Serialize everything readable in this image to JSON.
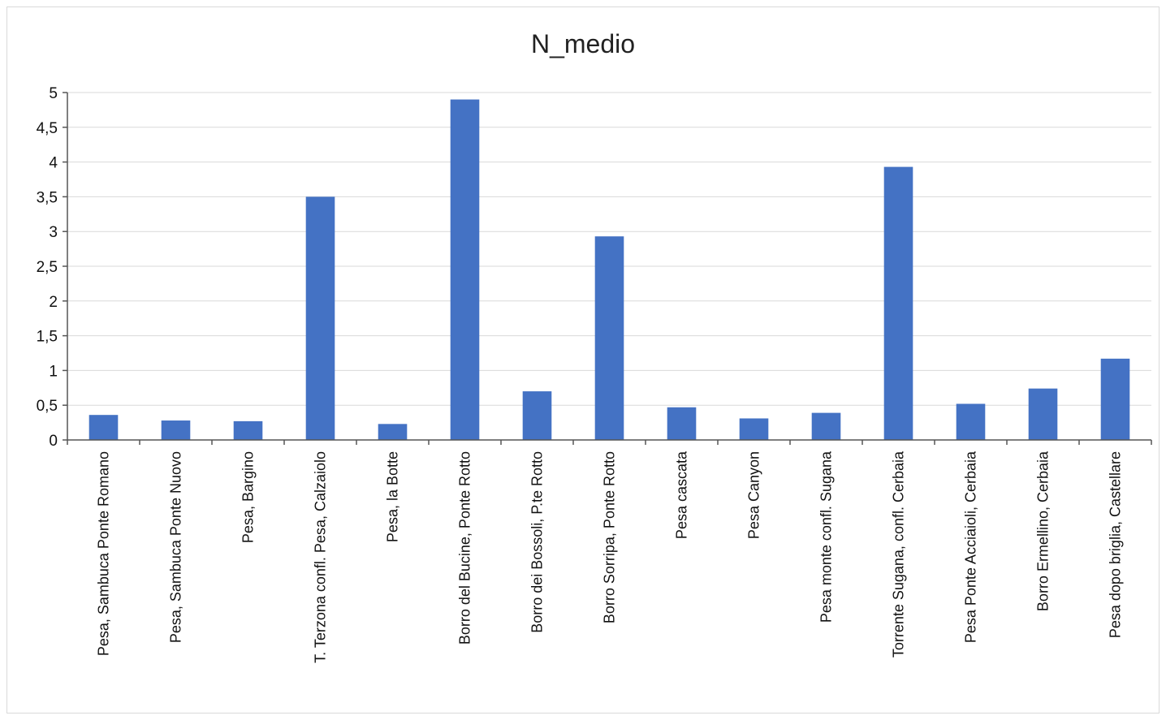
{
  "chart_data": {
    "type": "bar",
    "title": "N_medio",
    "xlabel": "",
    "ylabel": "",
    "ylim": [
      0,
      5
    ],
    "yticks": [
      "0",
      "0,5",
      "1",
      "1,5",
      "2",
      "2,5",
      "3",
      "3,5",
      "4",
      "4,5",
      "5"
    ],
    "ytick_values": [
      0,
      0.5,
      1,
      1.5,
      2,
      2.5,
      3,
      3.5,
      4,
      4.5,
      5
    ],
    "grid": true,
    "legend": "none",
    "bar_color": "#4472c4",
    "categories": [
      "Pesa, Sambuca Ponte Romano",
      "Pesa, Sambuca Ponte Nuovo",
      "Pesa, Bargino",
      "T. Terzona confl. Pesa, Calzaiolo",
      "Pesa, la Botte",
      "Borro del Bucine, Ponte Rotto",
      "Borro dei Bossoli, P.te Rotto",
      "Borro Sorripa, Ponte Rotto",
      "Pesa cascata",
      "Pesa Canyon",
      "Pesa monte confl. Sugana",
      "Torrente Sugana, confl. Cerbaia",
      "Pesa Ponte Acciaioli, Cerbaia",
      "Borro Ermellino, Cerbaia",
      "Pesa dopo briglia, Castellare"
    ],
    "values": [
      0.36,
      0.28,
      0.27,
      3.5,
      0.23,
      4.9,
      0.7,
      2.93,
      0.47,
      0.31,
      0.39,
      3.93,
      0.52,
      0.74,
      1.17
    ]
  }
}
